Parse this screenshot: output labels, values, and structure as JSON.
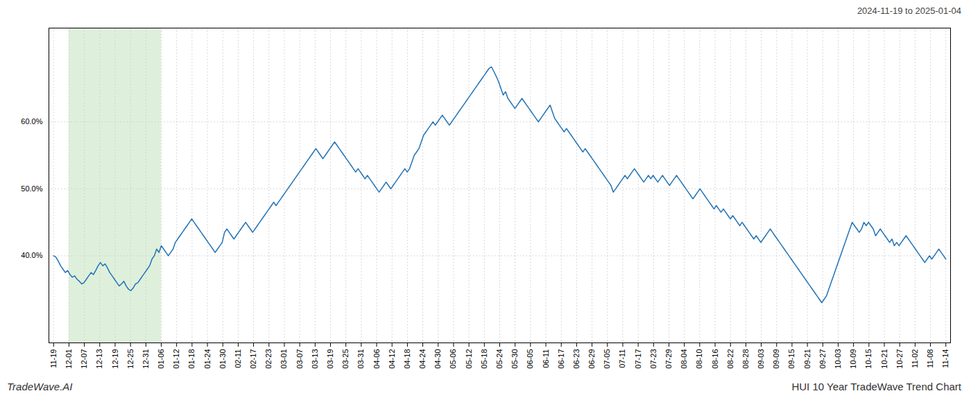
{
  "chart_data": {
    "type": "line",
    "title": "HUI 10 Year TradeWave Trend Chart",
    "subtitle": "2024-11-19 to 2025-01-04",
    "annotations": [
      "TradeWave.AI"
    ],
    "color": "#2272b5",
    "grid": true,
    "highlight": {
      "x": [
        6.569,
        45.9828
      ],
      "color": "#d6ecd2"
    },
    "xlim": [
      -2,
      383
    ],
    "xticks": [
      {
        "value": 0,
        "label": "11-19"
      },
      {
        "value": 6.569,
        "label": "12-01"
      },
      {
        "value": 13.1379,
        "label": "12-07"
      },
      {
        "value": 19.7069,
        "label": "12-13"
      },
      {
        "value": 26.2759,
        "label": "12-19"
      },
      {
        "value": 32.8448,
        "label": "12-25"
      },
      {
        "value": 39.4138,
        "label": "12-31"
      },
      {
        "value": 45.9828,
        "label": "01-06"
      },
      {
        "value": 52.5517,
        "label": "01-12"
      },
      {
        "value": 59.1207,
        "label": "01-18"
      },
      {
        "value": 65.6897,
        "label": "01-24"
      },
      {
        "value": 72.2586,
        "label": "01-30"
      },
      {
        "value": 78.8276,
        "label": "02-11"
      },
      {
        "value": 85.3966,
        "label": "02-17"
      },
      {
        "value": 91.9655,
        "label": "02-23"
      },
      {
        "value": 98.5345,
        "label": "03-01"
      },
      {
        "value": 105.1034,
        "label": "03-07"
      },
      {
        "value": 111.6724,
        "label": "03-13"
      },
      {
        "value": 118.2414,
        "label": "03-19"
      },
      {
        "value": 124.8103,
        "label": "03-25"
      },
      {
        "value": 131.3793,
        "label": "03-31"
      },
      {
        "value": 137.9483,
        "label": "04-06"
      },
      {
        "value": 144.5172,
        "label": "04-12"
      },
      {
        "value": 151.0862,
        "label": "04-18"
      },
      {
        "value": 157.6552,
        "label": "04-24"
      },
      {
        "value": 164.2241,
        "label": "04-30"
      },
      {
        "value": 170.7931,
        "label": "05-06"
      },
      {
        "value": 177.3621,
        "label": "05-12"
      },
      {
        "value": 183.931,
        "label": "05-18"
      },
      {
        "value": 190.5,
        "label": "05-24"
      },
      {
        "value": 197.069,
        "label": "05-30"
      },
      {
        "value": 203.6379,
        "label": "06-05"
      },
      {
        "value": 210.2069,
        "label": "06-11"
      },
      {
        "value": 216.7759,
        "label": "06-17"
      },
      {
        "value": 223.3448,
        "label": "06-23"
      },
      {
        "value": 229.9138,
        "label": "06-29"
      },
      {
        "value": 236.4828,
        "label": "07-05"
      },
      {
        "value": 243.0517,
        "label": "07-11"
      },
      {
        "value": 249.6207,
        "label": "07-17"
      },
      {
        "value": 256.1897,
        "label": "07-23"
      },
      {
        "value": 262.7586,
        "label": "07-29"
      },
      {
        "value": 269.3276,
        "label": "08-04"
      },
      {
        "value": 275.8966,
        "label": "08-10"
      },
      {
        "value": 282.4655,
        "label": "08-16"
      },
      {
        "value": 289.0345,
        "label": "08-22"
      },
      {
        "value": 295.6034,
        "label": "08-28"
      },
      {
        "value": 302.1724,
        "label": "09-03"
      },
      {
        "value": 308.7414,
        "label": "09-09"
      },
      {
        "value": 315.3103,
        "label": "09-15"
      },
      {
        "value": 321.8793,
        "label": "09-21"
      },
      {
        "value": 328.4483,
        "label": "09-27"
      },
      {
        "value": 335.0172,
        "label": "10-03"
      },
      {
        "value": 341.5862,
        "label": "10-09"
      },
      {
        "value": 348.1552,
        "label": "10-15"
      },
      {
        "value": 354.7241,
        "label": "10-21"
      },
      {
        "value": 361.2931,
        "label": "10-27"
      },
      {
        "value": 367.8621,
        "label": "11-02"
      },
      {
        "value": 374.431,
        "label": "11-08"
      },
      {
        "value": 381,
        "label": "11-14"
      }
    ],
    "ylim": [
      27.0,
      74.0
    ],
    "yticks": [
      {
        "value": 40.0,
        "label": "40.0%"
      },
      {
        "value": 50.0,
        "label": "50.0%"
      },
      {
        "value": 60.0,
        "label": "60.0%"
      }
    ],
    "values": [
      40.0,
      39.8,
      39.2,
      38.5,
      38.0,
      37.5,
      37.8,
      37.2,
      36.8,
      37.0,
      36.5,
      36.2,
      35.8,
      36.0,
      36.5,
      37.0,
      37.5,
      37.2,
      37.8,
      38.5,
      39.0,
      38.5,
      38.8,
      38.2,
      37.5,
      37.0,
      36.5,
      36.0,
      35.5,
      35.8,
      36.2,
      35.5,
      35.0,
      34.8,
      35.2,
      35.8,
      36.0,
      36.5,
      37.0,
      37.5,
      38.0,
      38.5,
      39.5,
      40.0,
      41.0,
      40.5,
      41.5,
      41.0,
      40.5,
      40.0,
      40.5,
      41.0,
      42.0,
      42.5,
      43.0,
      43.5,
      44.0,
      44.5,
      45.0,
      45.5,
      45.0,
      44.5,
      44.0,
      43.5,
      43.0,
      42.5,
      42.0,
      41.5,
      41.0,
      40.5,
      41.0,
      41.5,
      42.0,
      43.5,
      44.0,
      43.5,
      43.0,
      42.5,
      43.0,
      43.5,
      44.0,
      44.5,
      45.0,
      44.5,
      44.0,
      43.5,
      44.0,
      44.5,
      45.0,
      45.5,
      46.0,
      46.5,
      47.0,
      47.5,
      48.0,
      47.5,
      48.0,
      48.5,
      49.0,
      49.5,
      50.0,
      50.5,
      51.0,
      51.5,
      52.0,
      52.5,
      53.0,
      53.5,
      54.0,
      54.5,
      55.0,
      55.5,
      56.0,
      55.5,
      55.0,
      54.5,
      55.0,
      55.5,
      56.0,
      56.5,
      57.0,
      56.5,
      56.0,
      55.5,
      55.0,
      54.5,
      54.0,
      53.5,
      53.0,
      52.5,
      53.0,
      52.5,
      52.0,
      51.5,
      52.0,
      51.5,
      51.0,
      50.5,
      50.0,
      49.5,
      50.0,
      50.5,
      51.0,
      50.5,
      50.0,
      50.5,
      51.0,
      51.5,
      52.0,
      52.5,
      53.0,
      52.5,
      53.0,
      54.0,
      55.0,
      55.5,
      56.0,
      57.0,
      58.0,
      58.5,
      59.0,
      59.5,
      60.0,
      59.5,
      60.0,
      60.5,
      61.0,
      60.5,
      60.0,
      59.5,
      60.0,
      60.5,
      61.0,
      61.5,
      62.0,
      62.5,
      63.0,
      63.5,
      64.0,
      64.5,
      65.0,
      65.5,
      66.0,
      66.5,
      67.0,
      67.5,
      68.0,
      68.2,
      67.5,
      66.8,
      66.0,
      65.0,
      64.0,
      64.5,
      63.5,
      63.0,
      62.5,
      62.0,
      62.5,
      63.0,
      63.5,
      63.0,
      62.5,
      62.0,
      61.5,
      61.0,
      60.5,
      60.0,
      60.5,
      61.0,
      61.5,
      62.0,
      62.5,
      61.5,
      60.5,
      60.0,
      59.5,
      59.0,
      58.5,
      59.0,
      58.5,
      58.0,
      57.5,
      57.0,
      56.5,
      56.0,
      55.5,
      56.0,
      55.5,
      55.0,
      54.5,
      54.0,
      53.5,
      53.0,
      52.5,
      52.0,
      51.5,
      51.0,
      50.5,
      49.5,
      50.0,
      50.5,
      51.0,
      51.5,
      52.0,
      51.5,
      52.0,
      52.5,
      53.0,
      52.5,
      52.0,
      51.5,
      51.0,
      51.5,
      52.0,
      51.5,
      52.0,
      51.5,
      51.0,
      51.5,
      52.0,
      51.5,
      51.0,
      50.5,
      51.0,
      51.5,
      52.0,
      51.5,
      51.0,
      50.5,
      50.0,
      49.5,
      49.0,
      48.5,
      49.0,
      49.5,
      50.0,
      49.5,
      49.0,
      48.5,
      48.0,
      47.5,
      47.0,
      47.5,
      47.0,
      46.5,
      47.0,
      46.5,
      46.0,
      45.5,
      46.0,
      45.5,
      45.0,
      44.5,
      45.0,
      44.5,
      44.0,
      43.5,
      43.0,
      42.5,
      43.0,
      42.5,
      42.0,
      42.5,
      43.0,
      43.5,
      44.0,
      43.5,
      43.0,
      42.5,
      42.0,
      41.5,
      41.0,
      40.5,
      40.0,
      39.5,
      39.0,
      38.5,
      38.0,
      37.5,
      37.0,
      36.5,
      36.0,
      35.5,
      35.0,
      34.5,
      34.0,
      33.5,
      33.0,
      33.5,
      34.0,
      35.0,
      36.0,
      37.0,
      38.0,
      39.0,
      40.0,
      41.0,
      42.0,
      43.0,
      44.0,
      45.0,
      44.5,
      44.0,
      43.5,
      44.0,
      45.0,
      44.5,
      45.0,
      44.5,
      44.0,
      43.0,
      43.5,
      44.0,
      43.5,
      43.0,
      42.5,
      42.0,
      42.5,
      41.5,
      42.0,
      41.5,
      42.0,
      42.5,
      43.0,
      42.5,
      42.0,
      41.5,
      41.0,
      40.5,
      40.0,
      39.5,
      39.0,
      39.5,
      40.0,
      39.5,
      40.0,
      40.5,
      41.0,
      40.5,
      40.0,
      39.5
    ]
  }
}
